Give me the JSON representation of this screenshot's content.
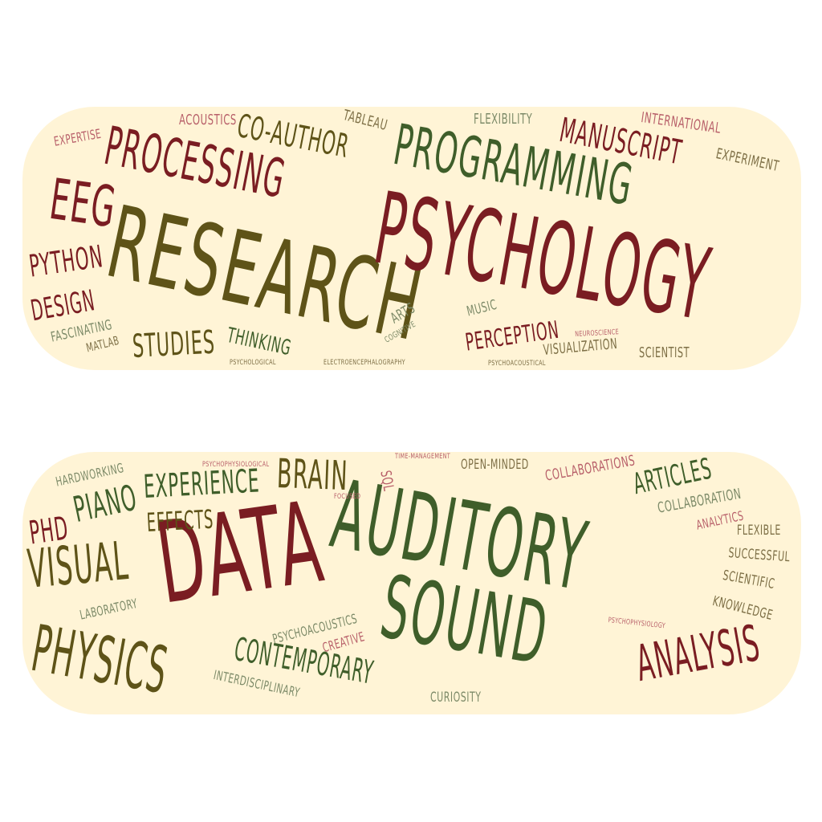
{
  "top_cloud": {
    "words": {
      "research": "RESEARCH",
      "psychology": "PSYCHOLOGY",
      "programming": "PROGRAMMING",
      "processing": "PROCESSING",
      "manuscript": "MANUSCRIPT",
      "eeg": "EEG",
      "co_author": "CO-AUTHOR",
      "python": "PYTHON",
      "design": "DESIGN",
      "studies": "STUDIES",
      "perception": "PERCEPTION",
      "thinking": "THINKING",
      "visualization": "VISUALIZATION",
      "scientist": "SCIENTIST",
      "international": "INTERNATIONAL",
      "experiment": "EXPERIMENT",
      "flexibility": "FLEXIBILITY",
      "acoustics": "ACOUSTICS",
      "tableau": "TABLEAU",
      "expertise": "EXPERTISE",
      "fascinating": "FASCINATING",
      "matlab": "MATLAB",
      "arts": "ARTS",
      "cognitive": "COGNITIVE",
      "music": "MUSIC",
      "neuroscience": "NEUROSCIENCE",
      "psychological": "PSYCHOLOGICAL",
      "electroencephalography": "ELECTROENCEPHALOGRAPHY",
      "psychoacoustical": "PSYCHOACOUSTICAL"
    }
  },
  "bottom_cloud": {
    "words": {
      "auditory": "AUDITORY",
      "data": "DATA",
      "sound": "SOUND",
      "physics": "PHYSICS",
      "visual": "VISUAL",
      "analysis": "ANALYSIS",
      "contemporary": "CONTEMPORARY",
      "brain": "BRAIN",
      "experience": "EXPERIENCE",
      "piano": "PIANO",
      "phd": "PHD",
      "effects": "EFFECTS",
      "articles": "ARTICLES",
      "collaborations": "COLLABORATIONS",
      "collaboration": "COLLABORATION",
      "analytics": "ANALYTICS",
      "flexible": "FLEXIBLE",
      "successful": "SUCCESSFUL",
      "scientific": "SCIENTIFIC",
      "knowledge": "KNOWLEDGE",
      "hardworking": "HARDWORKING",
      "open_minded": "OPEN-MINDED",
      "psychophysiological": "PSYCHOPHYSIOLOGICAL",
      "time_management": "TIME-MANAGEMENT",
      "sql": "SQL",
      "focused": "FOCUSED",
      "laboratory": "LABORATORY",
      "psychoacoustics": "PSYCHOACOUSTICS",
      "creative": "CREATIVE",
      "interdisciplinary": "INTERDISCIPLINARY",
      "curiosity": "CURIOSITY",
      "psychophysiology": "PSYCHOPHYSIOLOGY"
    }
  }
}
